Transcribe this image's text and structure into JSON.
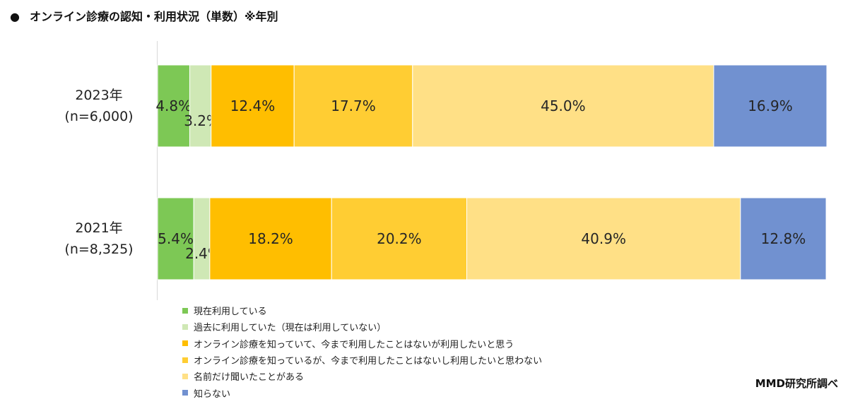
{
  "title": {
    "bullet": "●",
    "text": "オンライン診療の認知・利用状況（単数）※年別"
  },
  "credit": "MMD研究所調べ",
  "chart_data": {
    "type": "bar",
    "orientation": "horizontal",
    "stacked": "100%",
    "title": "オンライン診療の認知・利用状況（単数）※年別",
    "categories": [
      {
        "year": "2023年",
        "n": "(n=6,000)"
      },
      {
        "year": "2021年",
        "n": "(n=8,325)"
      }
    ],
    "xlim": [
      0,
      100
    ],
    "grid": false,
    "legend_position": "bottom-left",
    "series": [
      {
        "name": "現在利用している",
        "values": [
          4.8,
          5.4
        ],
        "color": "#7DC855"
      },
      {
        "name": "過去に利用していた（現在は利用していない）",
        "values": [
          3.2,
          2.4
        ],
        "color": "#CFE8B5"
      },
      {
        "name": "オンライン診療を知っていて、今まで利用したことはないが利用したいと思う",
        "values": [
          12.4,
          18.2
        ],
        "color": "#FFBE00"
      },
      {
        "name": "オンライン診療を知っているが、今まで利用したことはないし利用したいと思わない",
        "values": [
          17.7,
          20.2
        ],
        "color": "#FFCD33"
      },
      {
        "name": "名前だけ聞いたことがある",
        "values": [
          45.0,
          40.9
        ],
        "color": "#FFE086"
      },
      {
        "name": "知らない",
        "values": [
          16.9,
          12.8
        ],
        "color": "#7191D0"
      }
    ]
  }
}
